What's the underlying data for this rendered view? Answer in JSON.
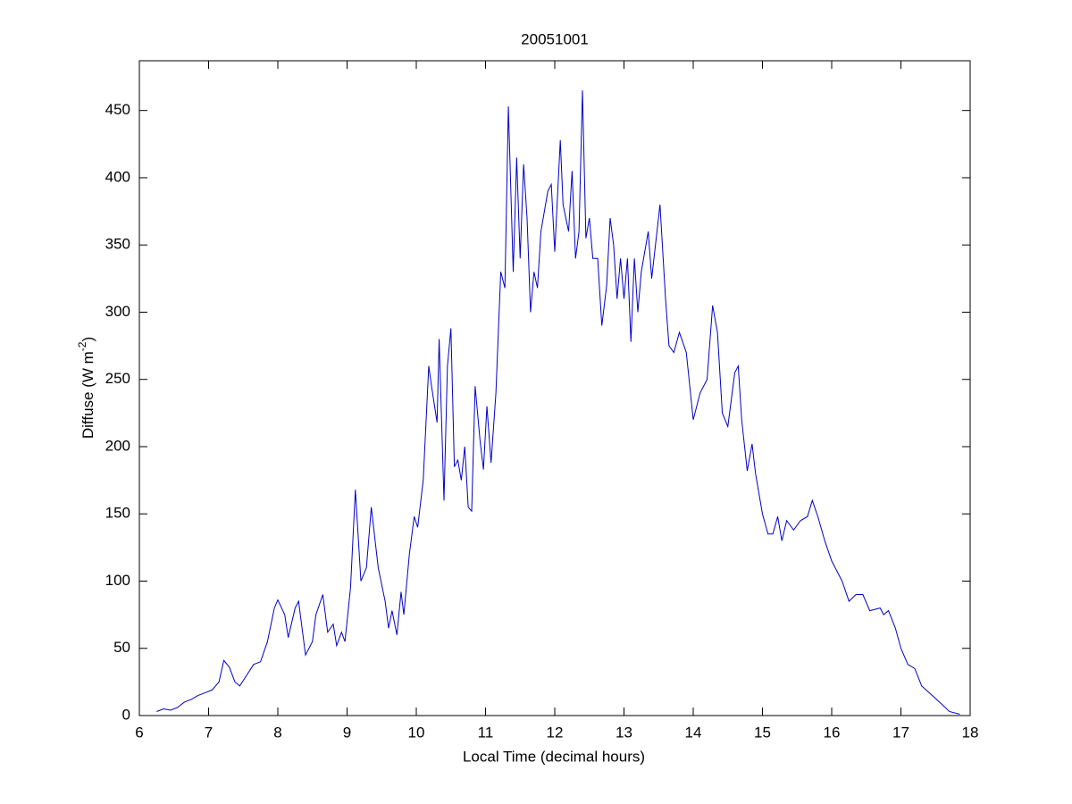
{
  "chart_data": {
    "type": "line",
    "title": "20051001",
    "xlabel": "Local Time (decimal hours)",
    "ylabel": {
      "text": "Diffuse (W m",
      "superscript": "-2",
      "end": ")"
    },
    "xlim": [
      6,
      18
    ],
    "xticks": [
      6,
      7,
      8,
      9,
      10,
      11,
      12,
      13,
      14,
      15,
      16,
      17,
      18
    ],
    "ylim": [
      0,
      487
    ],
    "yticks": [
      0,
      50,
      100,
      150,
      200,
      250,
      300,
      350,
      400,
      450
    ],
    "grid": false,
    "series": [
      {
        "color": "#0000c8",
        "x": [
          6.25,
          6.35,
          6.45,
          6.55,
          6.65,
          6.75,
          6.85,
          6.95,
          7.05,
          7.15,
          7.22,
          7.3,
          7.38,
          7.45,
          7.55,
          7.65,
          7.75,
          7.85,
          7.95,
          8.0,
          8.1,
          8.15,
          8.25,
          8.3,
          8.4,
          8.5,
          8.55,
          8.65,
          8.72,
          8.8,
          8.85,
          8.92,
          8.97,
          9.05,
          9.12,
          9.2,
          9.28,
          9.35,
          9.45,
          9.55,
          9.6,
          9.65,
          9.72,
          9.78,
          9.82,
          9.9,
          9.97,
          10.02,
          10.1,
          10.18,
          10.22,
          10.3,
          10.33,
          10.4,
          10.45,
          10.5,
          10.55,
          10.6,
          10.65,
          10.7,
          10.75,
          10.8,
          10.85,
          10.92,
          10.97,
          11.02,
          11.08,
          11.15,
          11.22,
          11.28,
          11.33,
          11.4,
          11.45,
          11.5,
          11.55,
          11.6,
          11.65,
          11.7,
          11.75,
          11.8,
          11.9,
          11.95,
          12.0,
          12.08,
          12.12,
          12.2,
          12.25,
          12.3,
          12.35,
          12.4,
          12.45,
          12.5,
          12.55,
          12.62,
          12.68,
          12.75,
          12.8,
          12.85,
          12.9,
          12.95,
          13.0,
          13.05,
          13.1,
          13.15,
          13.2,
          13.25,
          13.35,
          13.4,
          13.52,
          13.6,
          13.65,
          13.72,
          13.8,
          13.9,
          14.0,
          14.1,
          14.2,
          14.28,
          14.35,
          14.42,
          14.5,
          14.6,
          14.65,
          14.7,
          14.78,
          14.85,
          14.9,
          15.0,
          15.08,
          15.15,
          15.22,
          15.28,
          15.35,
          15.45,
          15.55,
          15.65,
          15.72,
          15.8,
          15.9,
          16.0,
          16.15,
          16.25,
          16.35,
          16.45,
          16.55,
          16.7,
          16.75,
          16.82,
          16.92,
          17.0,
          17.1,
          17.2,
          17.3,
          17.45,
          17.6,
          17.7,
          17.85
        ],
        "values": [
          3,
          5,
          4,
          6,
          10,
          12,
          15,
          17,
          19,
          25,
          41,
          36,
          25,
          22,
          30,
          38,
          40,
          55,
          80,
          86,
          75,
          58,
          80,
          85,
          45,
          55,
          75,
          90,
          62,
          68,
          52,
          62,
          55,
          95,
          168,
          100,
          110,
          155,
          110,
          85,
          65,
          78,
          60,
          92,
          75,
          120,
          148,
          140,
          175,
          260,
          245,
          218,
          280,
          160,
          260,
          288,
          185,
          190,
          175,
          200,
          155,
          152,
          245,
          205,
          183,
          230,
          188,
          240,
          330,
          318,
          453,
          330,
          415,
          340,
          410,
          370,
          300,
          330,
          318,
          360,
          390,
          395,
          345,
          428,
          380,
          360,
          405,
          340,
          360,
          465,
          355,
          370,
          340,
          340,
          290,
          320,
          370,
          350,
          310,
          340,
          310,
          340,
          278,
          340,
          300,
          330,
          360,
          325,
          380,
          310,
          275,
          270,
          285,
          270,
          220,
          240,
          250,
          305,
          285,
          225,
          215,
          255,
          260,
          220,
          182,
          202,
          180,
          150,
          135,
          135,
          148,
          130,
          145,
          138,
          145,
          148,
          160,
          148,
          130,
          115,
          100,
          85,
          90,
          90,
          78,
          80,
          75,
          78,
          65,
          50,
          38,
          35,
          22,
          15,
          8,
          3,
          1
        ]
      }
    ]
  }
}
